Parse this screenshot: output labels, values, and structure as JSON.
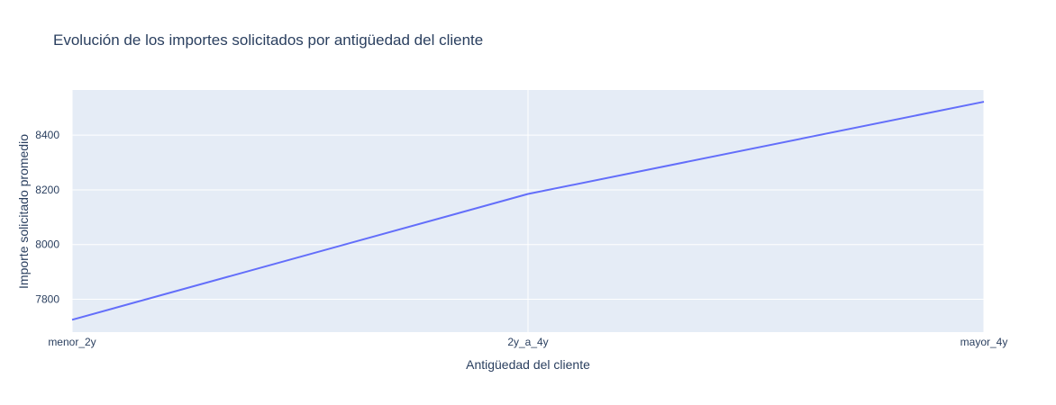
{
  "chart_data": {
    "type": "line",
    "title": "Evolución de los importes solicitados por antigüedad del cliente",
    "xlabel": "Antigüedad del cliente",
    "ylabel": "Importe solicitado promedio",
    "categories": [
      "menor_2y",
      "2y_a_4y",
      "mayor_4y"
    ],
    "series": [
      {
        "values": [
          7725,
          8185,
          8522
        ]
      }
    ],
    "ylim": [
      7680,
      8565
    ],
    "yticks": [
      7800,
      8000,
      8200,
      8400
    ],
    "grid": true,
    "colors": {
      "line": "#636efa",
      "plot_bg": "#e5ecf6",
      "grid": "#ffffff",
      "text": "#2a3f5f"
    }
  }
}
